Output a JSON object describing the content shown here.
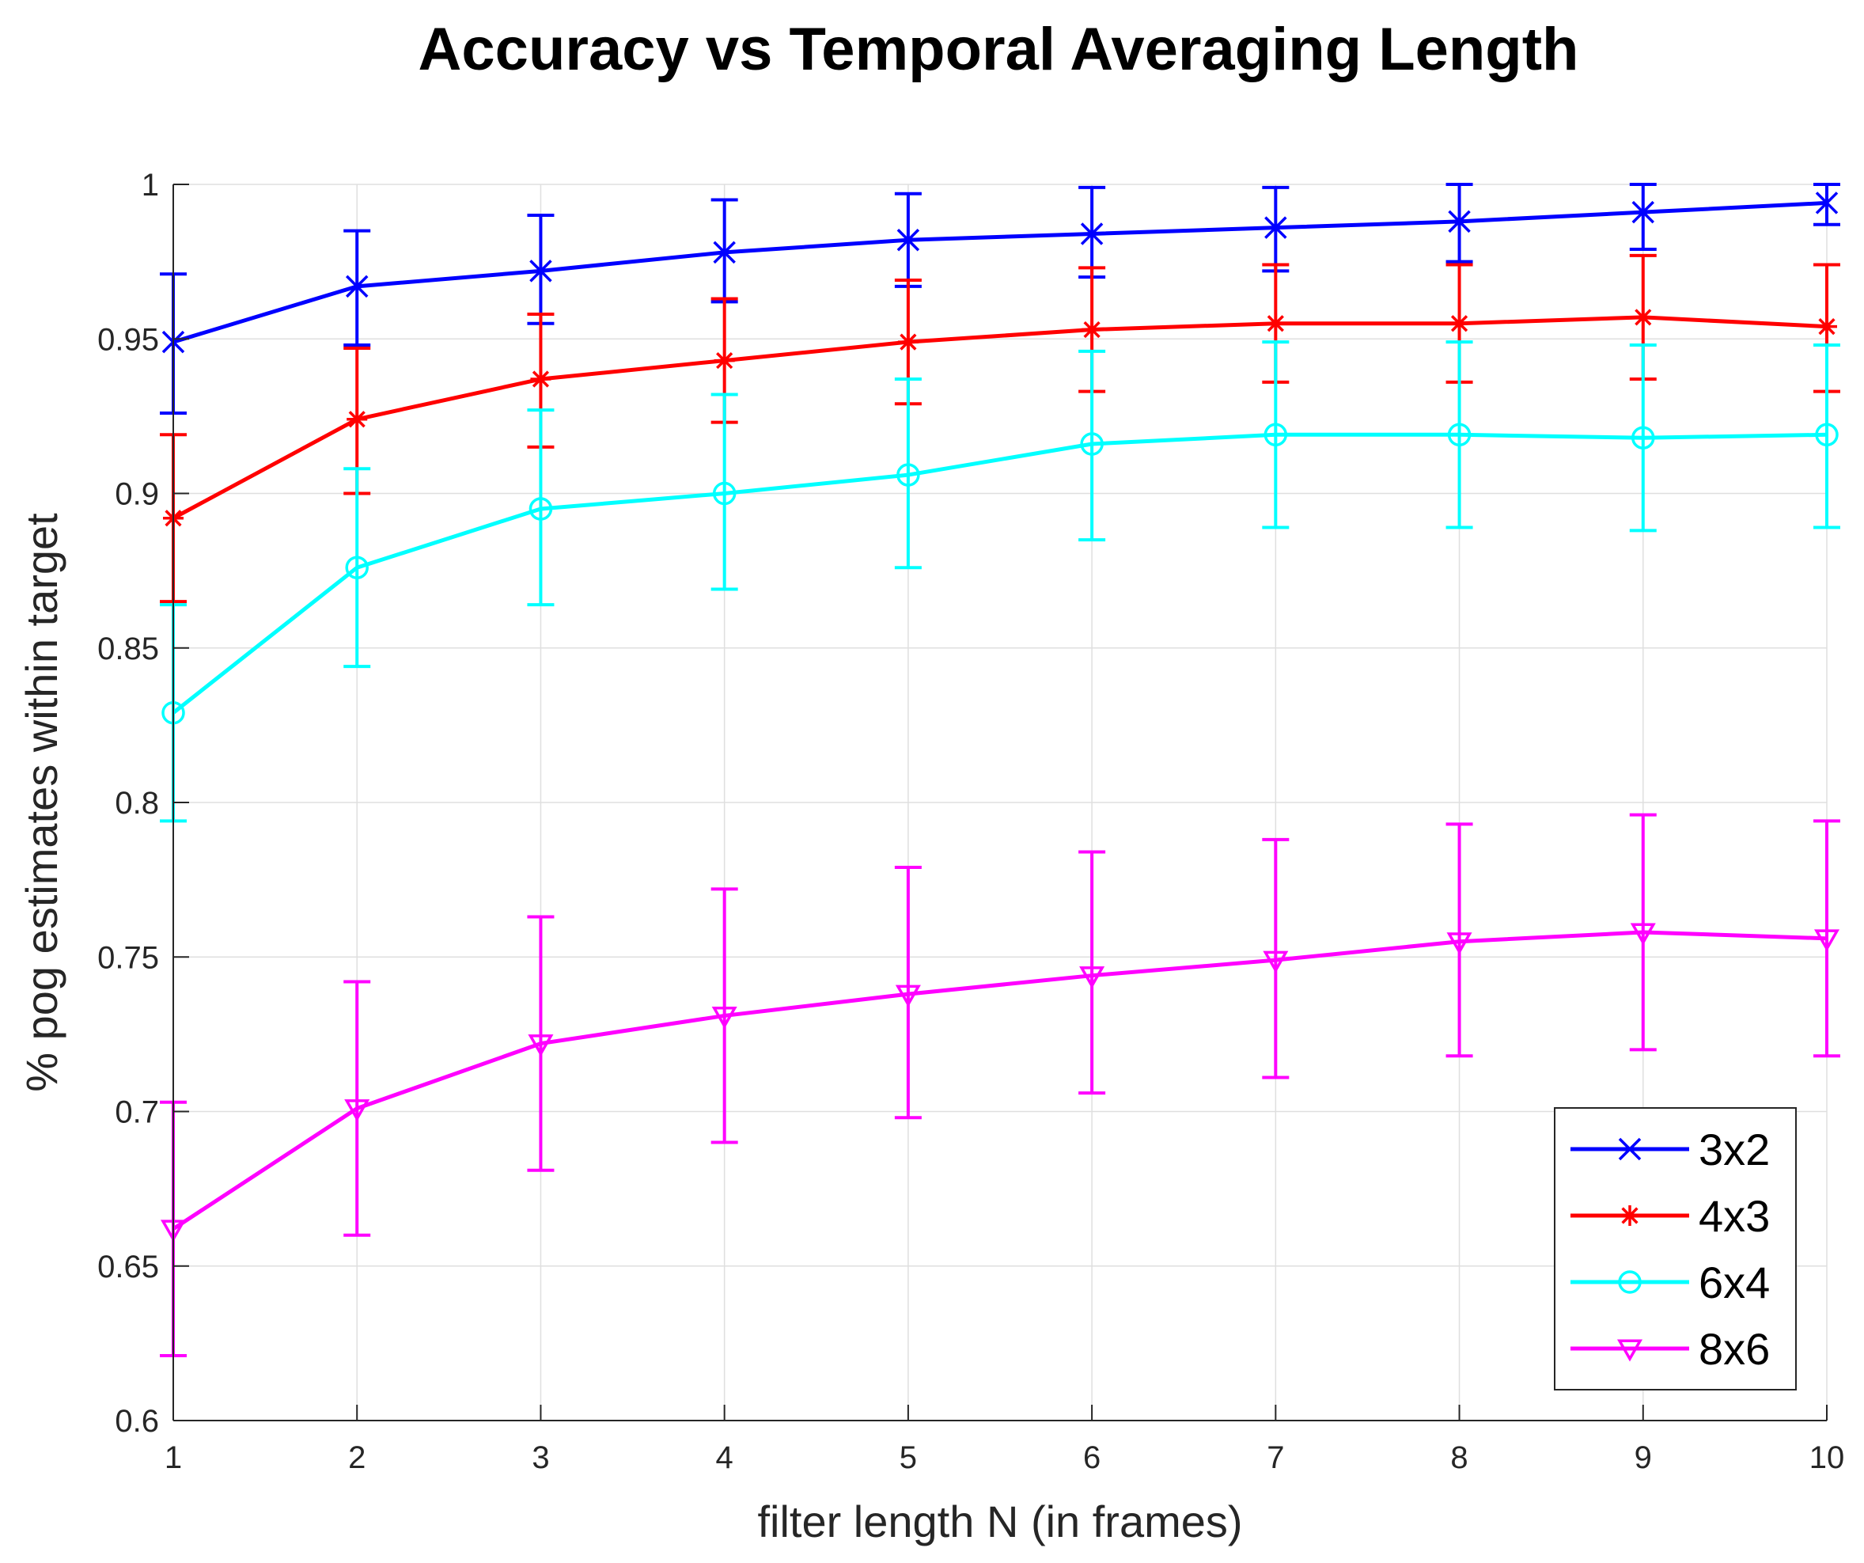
{
  "chart_data": {
    "type": "line",
    "title": "Accuracy vs Temporal Averaging Length",
    "xlabel": "filter length N (in frames)",
    "ylabel": "% pog estimates within target",
    "xlim": [
      1,
      10
    ],
    "ylim": [
      0.6,
      1.0
    ],
    "x_ticks": [
      1,
      2,
      3,
      4,
      5,
      6,
      7,
      8,
      9,
      10
    ],
    "x_tick_labels": [
      "1",
      "2",
      "3",
      "4",
      "5",
      "6",
      "7",
      "8",
      "9",
      "10"
    ],
    "y_ticks": [
      0.6,
      0.65,
      0.7,
      0.75,
      0.8,
      0.85,
      0.9,
      0.95,
      1.0
    ],
    "y_tick_labels": [
      "0.6",
      "0.65",
      "0.7",
      "0.75",
      "0.8",
      "0.85",
      "0.9",
      "0.95",
      "1"
    ],
    "grid": true,
    "legend_position": "bottom-right",
    "x": [
      1,
      2,
      3,
      4,
      5,
      6,
      7,
      8,
      9,
      10
    ],
    "series": [
      {
        "name": "3x2",
        "color": "#0000ff",
        "marker": "x",
        "values": [
          0.949,
          0.967,
          0.972,
          0.978,
          0.982,
          0.984,
          0.986,
          0.988,
          0.991,
          0.994
        ],
        "lower": [
          0.926,
          0.948,
          0.955,
          0.962,
          0.967,
          0.97,
          0.972,
          0.975,
          0.979,
          0.987
        ],
        "upper": [
          0.971,
          0.985,
          0.99,
          0.995,
          0.997,
          0.999,
          0.999,
          1.0,
          1.0,
          1.0
        ]
      },
      {
        "name": "4x3",
        "color": "#ff0000",
        "marker": "asterisk",
        "values": [
          0.892,
          0.924,
          0.937,
          0.943,
          0.949,
          0.953,
          0.955,
          0.955,
          0.957,
          0.954
        ],
        "lower": [
          0.865,
          0.9,
          0.915,
          0.923,
          0.929,
          0.933,
          0.936,
          0.936,
          0.937,
          0.933
        ],
        "upper": [
          0.919,
          0.947,
          0.958,
          0.963,
          0.969,
          0.973,
          0.974,
          0.974,
          0.977,
          0.974
        ]
      },
      {
        "name": "6x4",
        "color": "#00ffff",
        "marker": "circle",
        "values": [
          0.829,
          0.876,
          0.895,
          0.9,
          0.906,
          0.916,
          0.919,
          0.919,
          0.918,
          0.919
        ],
        "lower": [
          0.794,
          0.844,
          0.864,
          0.869,
          0.876,
          0.885,
          0.889,
          0.889,
          0.888,
          0.889
        ],
        "upper": [
          0.864,
          0.908,
          0.927,
          0.932,
          0.937,
          0.946,
          0.949,
          0.949,
          0.948,
          0.948
        ]
      },
      {
        "name": "8x6",
        "color": "#ff00ff",
        "marker": "triangle-down",
        "values": [
          0.662,
          0.701,
          0.722,
          0.731,
          0.738,
          0.744,
          0.749,
          0.755,
          0.758,
          0.756
        ],
        "lower": [
          0.621,
          0.66,
          0.681,
          0.69,
          0.698,
          0.706,
          0.711,
          0.718,
          0.72,
          0.718
        ],
        "upper": [
          0.703,
          0.742,
          0.763,
          0.772,
          0.779,
          0.784,
          0.788,
          0.793,
          0.796,
          0.794
        ]
      }
    ]
  }
}
